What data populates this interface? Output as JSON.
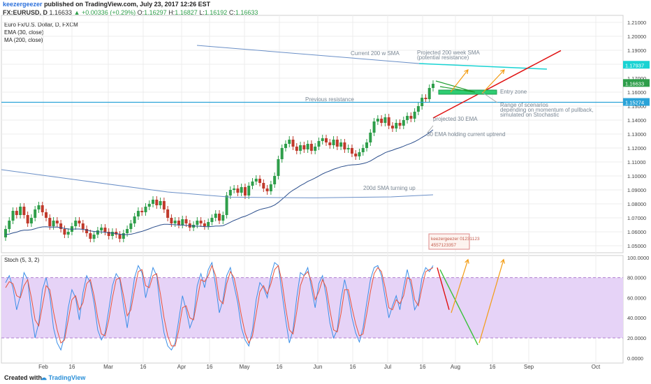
{
  "header": {
    "user": "keezergeezer",
    "published": "published on TradingView.com, July 23, 2017 12:26 EST",
    "symbol": "FX:EURUSD, D",
    "last": "1.16633",
    "change": "+0.00336 (+0.29%)",
    "o_label": "O:",
    "o": "1.16297",
    "h_label": "H:",
    "h": "1.16827",
    "l_label": "L:",
    "l": "1.16192",
    "c_label": "C:",
    "c": "1.16633"
  },
  "legend": {
    "title": "Euro Fx/U.S. Dollar, D, FXCM",
    "ema": "EMA (30, close)",
    "ma": "MA (200, close)"
  },
  "stoch_legend": "Stoch (5, 3, 2)",
  "footer": {
    "created": "Created with",
    "brand": "TradingView"
  },
  "colors": {
    "up": "#2e9e4a",
    "down": "#c0392b",
    "ema": "#2b4e8c",
    "ma": "#6a8fc7",
    "resistance": "#2aa3d8",
    "projected_sma": "#18d3d3",
    "red_line": "#e01010",
    "orange": "#f39c12",
    "entry": "#2ecc71",
    "stoch_k": "#3b8fe8",
    "stoch_d": "#e8533b",
    "stoch_band": "#e6d3f7",
    "grid": "#ececec"
  },
  "annotations": {
    "current_sma": "Current 200 w SMA",
    "projected_sma": "Projected 200 week SMA",
    "projected_sma_sub": "(potential resistance)",
    "entry_zone": "Entry zone",
    "prev_resistance": "Previous resistance",
    "range1": "Range of scenarios",
    "range2": "depending on momentum of pullback,",
    "range3": "simulated on Stochastic",
    "proj_ema": "projected 30 EMA",
    "ema_hold": "30 EMA holding current uptrend",
    "sma_turning": "200d SMA turning up",
    "watermark1": "keezergeezer",
    "watermark2": "01231123",
    "watermark3": "4557123357"
  },
  "chart_data": [
    {
      "type": "candlestick",
      "title": "Euro Fx/U.S. Dollar, D, FXCM",
      "ylim": [
        1.045,
        1.215
      ],
      "y_ticks": [
        "1.21000",
        "1.20000",
        "1.19000",
        "1.18000",
        "1.17000",
        "1.16000",
        "1.15000",
        "1.14000",
        "1.13000",
        "1.12000",
        "1.11000",
        "1.10000",
        "1.09000",
        "1.08000",
        "1.07000",
        "1.06000",
        "1.05000"
      ],
      "y_tick_values": [
        1.21,
        1.2,
        1.19,
        1.18,
        1.17,
        1.16,
        1.15,
        1.14,
        1.13,
        1.12,
        1.11,
        1.1,
        1.09,
        1.08,
        1.07,
        1.06,
        1.05
      ],
      "x_ticks": [
        "Feb",
        "16",
        "Mar",
        "16",
        "Apr",
        "16",
        "May",
        "16",
        "Jun",
        "16",
        "Jul",
        "16",
        "Aug",
        "16",
        "Sep",
        "Oct"
      ],
      "price_labels": [
        {
          "text": "1.17937",
          "value": 1.17937,
          "color": "#18d3d3"
        },
        {
          "text": "1.16633",
          "value": 1.16633,
          "color": "#2e9e4a"
        },
        {
          "text": "1.15274",
          "value": 1.15274,
          "color": "#2aa3d8"
        }
      ],
      "close_series": [
        1.062,
        1.068,
        1.075,
        1.072,
        1.078,
        1.072,
        1.066,
        1.07,
        1.076,
        1.079,
        1.074,
        1.07,
        1.064,
        1.068,
        1.066,
        1.062,
        1.058,
        1.06,
        1.064,
        1.068,
        1.066,
        1.062,
        1.059,
        1.055,
        1.058,
        1.061,
        1.063,
        1.06,
        1.057,
        1.06,
        1.058,
        1.055,
        1.059,
        1.062,
        1.066,
        1.071,
        1.075,
        1.074,
        1.078,
        1.08,
        1.083,
        1.079,
        1.082,
        1.076,
        1.07,
        1.066,
        1.068,
        1.065,
        1.069,
        1.066,
        1.063,
        1.065,
        1.068,
        1.066,
        1.064,
        1.067,
        1.07,
        1.073,
        1.068,
        1.072,
        1.086,
        1.09,
        1.091,
        1.088,
        1.092,
        1.086,
        1.093,
        1.096,
        1.098,
        1.095,
        1.091,
        1.089,
        1.094,
        1.1,
        1.112,
        1.12,
        1.123,
        1.126,
        1.121,
        1.118,
        1.122,
        1.119,
        1.123,
        1.118,
        1.121,
        1.125,
        1.127,
        1.124,
        1.122,
        1.126,
        1.121,
        1.124,
        1.119,
        1.12,
        1.116,
        1.114,
        1.117,
        1.12,
        1.124,
        1.131,
        1.139,
        1.141,
        1.138,
        1.142,
        1.136,
        1.134,
        1.138,
        1.136,
        1.14,
        1.143,
        1.141,
        1.146,
        1.15,
        1.156,
        1.155,
        1.163,
        1.166
      ],
      "annotations_lines": [
        "Current 200 w SMA",
        "Projected 200 week SMA",
        "Previous resistance",
        "projected 30 EMA"
      ]
    },
    {
      "type": "line",
      "title": "Stoch (5, 3, 2)",
      "ylim": [
        -5,
        102
      ],
      "y_ticks": [
        "100.0000",
        "80.0000",
        "60.0000",
        "40.0000",
        "20.0000",
        "0.0000"
      ],
      "y_tick_values": [
        100,
        80,
        60,
        40,
        20,
        0
      ],
      "band": [
        20,
        80
      ],
      "series": [
        {
          "name": "%K",
          "values": [
            75,
            82,
            70,
            48,
            62,
            85,
            78,
            45,
            20,
            35,
            68,
            80,
            62,
            30,
            15,
            8,
            22,
            50,
            68,
            60,
            38,
            65,
            82,
            75,
            55,
            28,
            18,
            25,
            48,
            72,
            84,
            78,
            52,
            30,
            55,
            80,
            92,
            85,
            60,
            75,
            90,
            82,
            50,
            25,
            12,
            8,
            15,
            38,
            62,
            48,
            30,
            40,
            72,
            84,
            70,
            88,
            95,
            72,
            45,
            58,
            82,
            90,
            72,
            55,
            30,
            18,
            12,
            28,
            58,
            75,
            70,
            60,
            82,
            95,
            92,
            65,
            38,
            15,
            28,
            60,
            85,
            82,
            90,
            70,
            50,
            74,
            82,
            62,
            35,
            20,
            28,
            58,
            78,
            62,
            40,
            25,
            16,
            30,
            55,
            78,
            90,
            92,
            82,
            60,
            40,
            52,
            62,
            48,
            70,
            88,
            72,
            48,
            55,
            80,
            90,
            86,
            92
          ]
        },
        {
          "name": "%D",
          "values": [
            70,
            76,
            74,
            62,
            60,
            72,
            78,
            60,
            38,
            32,
            52,
            72,
            68,
            46,
            28,
            15,
            18,
            38,
            58,
            62,
            48,
            55,
            74,
            78,
            62,
            40,
            24,
            22,
            38,
            60,
            78,
            80,
            62,
            42,
            48,
            68,
            86,
            88,
            72,
            70,
            82,
            84,
            64,
            40,
            22,
            12,
            12,
            28,
            50,
            52,
            40,
            38,
            58,
            78,
            76,
            82,
            92,
            82,
            58,
            54,
            74,
            86,
            80,
            62,
            42,
            25,
            15,
            22,
            44,
            66,
            72,
            64,
            74,
            88,
            92,
            76,
            50,
            28,
            24,
            46,
            72,
            82,
            86,
            76,
            58,
            66,
            78,
            70,
            48,
            28,
            26,
            44,
            68,
            68,
            50,
            34,
            22,
            24,
            44,
            66,
            84,
            90,
            86,
            70,
            50,
            48,
            58,
            54,
            62,
            80,
            78,
            58,
            52,
            70,
            86,
            88,
            90
          ]
        }
      ]
    }
  ]
}
